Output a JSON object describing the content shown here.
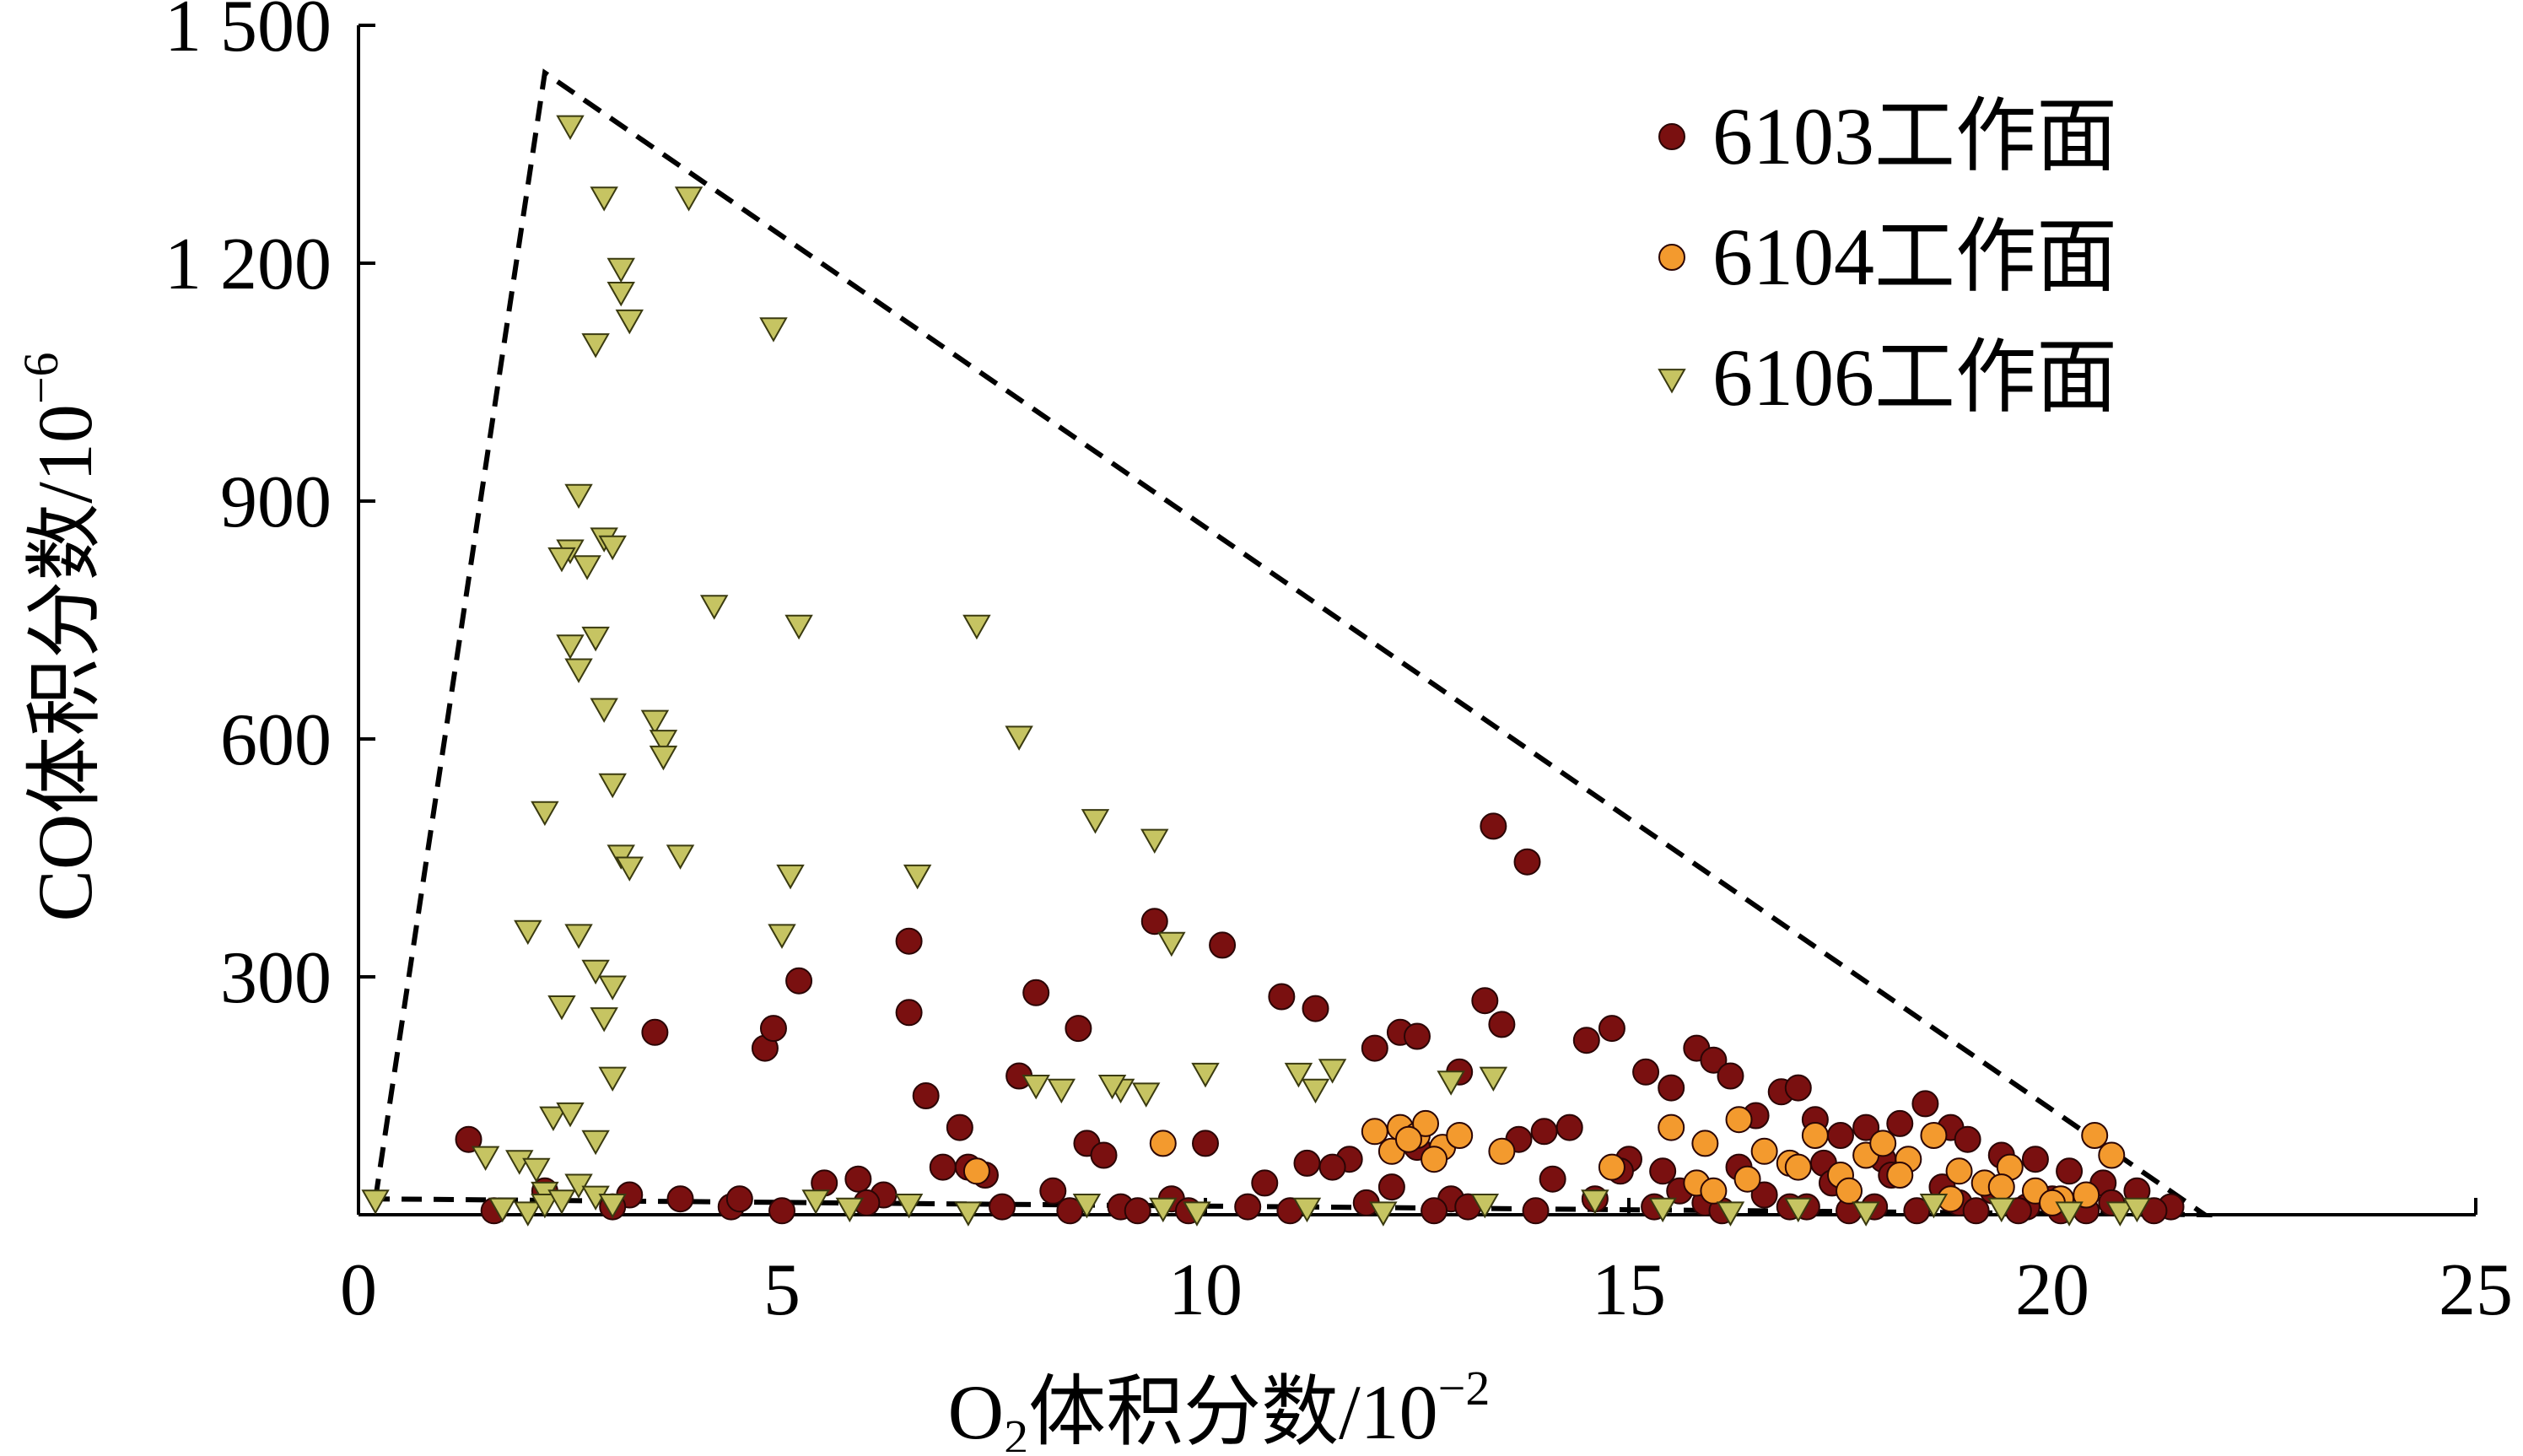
{
  "chart_data": {
    "type": "scatter",
    "xlabel_main": "O",
    "xlabel_sub": "2",
    "xlabel_rest": "体积分数/10",
    "xlabel_sup": "−2",
    "ylabel_main": "CO体积分数/10",
    "ylabel_sup": "−6",
    "xlim": [
      0,
      25
    ],
    "ylim": [
      0,
      1500
    ],
    "xticks": [
      0,
      5,
      10,
      15,
      20,
      25
    ],
    "xtick_labels": [
      "0",
      "5",
      "10",
      "15",
      "20",
      "25"
    ],
    "yticks": [
      300,
      600,
      900,
      1200,
      1500
    ],
    "ytick_labels": [
      "300",
      "600",
      "900",
      "1 200",
      "1 500"
    ],
    "grid": false,
    "legend_position": "top-right",
    "legend": [
      {
        "label": "6103工作面",
        "marker": "circle",
        "color": "#7a1010"
      },
      {
        "label": "6104工作面",
        "marker": "circle",
        "color": "#f39a2e"
      },
      {
        "label": "6106工作面",
        "marker": "triangle-down",
        "color": "#c6c462"
      }
    ],
    "boundary": {
      "style": "dashed",
      "x": [
        0.2,
        2.2,
        21.8,
        0.2
      ],
      "y": [
        20,
        1440,
        0,
        20
      ]
    },
    "series": [
      {
        "name": "6103工作面",
        "marker": "circle",
        "color": "#7a1010",
        "x": [
          1.3,
          3.5,
          5.2,
          4.8,
          4.9,
          6.5,
          6.5,
          6.7,
          7.1,
          7.8,
          8.0,
          8.5,
          8.6,
          9.4,
          10.2,
          10.9,
          11.3,
          12.0,
          12.3,
          12.5,
          13.0,
          13.3,
          13.4,
          13.5,
          13.8,
          14.0,
          14.5,
          14.8,
          15.2,
          15.5,
          15.8,
          16.0,
          16.2,
          16.5,
          16.8,
          17.0,
          17.2,
          17.5,
          17.8,
          18.2,
          18.5,
          18.8,
          19.0,
          6.9,
          7.2,
          8.8,
          10.0,
          11.2,
          11.7,
          12.5,
          13.7,
          14.3,
          15.0,
          15.4,
          16.3,
          17.3,
          18.0,
          19.4,
          19.8,
          20.2,
          20.6,
          21.0,
          21.4,
          1.6,
          2.2,
          3.2,
          3.8,
          4.4,
          5.5,
          5.9,
          6.2,
          7.4,
          8.2,
          9.0,
          9.6,
          10.7,
          11.5,
          12.2,
          12.9,
          14.1,
          14.9,
          15.6,
          16.6,
          17.4,
          18.1,
          18.7,
          19.3,
          20.0,
          20.7,
          21.2,
          4.5,
          6.0,
          7.6,
          9.2,
          10.5,
          11.9,
          13.1,
          14.6,
          15.9,
          16.9,
          17.9,
          18.9,
          19.7,
          20.4,
          3.0,
          5.0,
          8.4,
          9.8,
          11.0,
          12.7,
          13.9,
          15.3,
          16.1,
          17.1,
          17.6,
          18.4,
          19.1,
          19.6,
          20.1
        ],
        "y": [
          95,
          230,
          295,
          210,
          235,
          345,
          255,
          150,
          110,
          175,
          280,
          235,
          90,
          370,
          340,
          275,
          260,
          210,
          230,
          225,
          180,
          270,
          490,
          240,
          445,
          105,
          220,
          235,
          180,
          160,
          210,
          195,
          175,
          125,
          155,
          160,
          120,
          100,
          110,
          115,
          140,
          110,
          95,
          60,
          60,
          75,
          90,
          65,
          70,
          85,
          95,
          110,
          70,
          55,
          60,
          65,
          70,
          75,
          70,
          55,
          40,
          30,
          10,
          5,
          30,
          25,
          20,
          10,
          40,
          45,
          25,
          50,
          30,
          10,
          20,
          40,
          60,
          35,
          20,
          45,
          55,
          30,
          25,
          40,
          50,
          35,
          30,
          20,
          15,
          5,
          20,
          15,
          10,
          5,
          10,
          15,
          10,
          20,
          15,
          10,
          10,
          15,
          10,
          5,
          10,
          5,
          5,
          5,
          5,
          5,
          5,
          10,
          5,
          10,
          5,
          5,
          5,
          5,
          5
        ]
      },
      {
        "name": "6104工作面",
        "marker": "circle",
        "color": "#f39a2e",
        "x": [
          7.3,
          9.5,
          12.0,
          12.3,
          12.5,
          12.6,
          12.8,
          13.0,
          13.5,
          14.8,
          15.5,
          15.8,
          16.0,
          16.3,
          16.6,
          16.9,
          17.2,
          17.5,
          17.8,
          18.0,
          18.3,
          18.6,
          18.9,
          19.2,
          19.5,
          19.8,
          20.1,
          20.4,
          20.5,
          20.7,
          12.2,
          12.4,
          12.7,
          15.9,
          16.4,
          17.0,
          17.6,
          18.2,
          18.8,
          19.4,
          20.0
        ],
        "y": [
          55,
          90,
          105,
          110,
          100,
          115,
          85,
          100,
          80,
          60,
          110,
          40,
          30,
          120,
          80,
          65,
          100,
          50,
          75,
          90,
          70,
          100,
          55,
          40,
          60,
          30,
          20,
          25,
          100,
          75,
          80,
          95,
          70,
          90,
          45,
          60,
          30,
          50,
          20,
          35,
          15
        ]
      },
      {
        "name": "6106工作面",
        "marker": "triangle-down",
        "color": "#c6c462",
        "x": [
          0.2,
          2.5,
          2.9,
          3.1,
          3.1,
          3.2,
          2.8,
          3.9,
          4.9,
          2.6,
          2.9,
          3.0,
          2.5,
          2.4,
          2.7,
          2.8,
          4.2,
          5.2,
          7.3,
          2.5,
          2.6,
          2.9,
          3.5,
          3.6,
          3.6,
          7.8,
          2.2,
          3.0,
          3.1,
          3.2,
          3.8,
          5.1,
          6.6,
          8.7,
          9.4,
          2.0,
          2.6,
          2.8,
          3.0,
          5.0,
          9.6,
          2.4,
          2.9,
          3.0,
          9.0,
          11.1,
          11.5,
          12.9,
          13.4,
          8.0,
          8.3,
          8.9,
          9.3,
          10.0,
          11.3,
          2.3,
          2.5,
          2.8,
          1.5,
          1.9,
          2.1,
          2.2,
          2.6,
          1.7,
          2.0,
          2.2,
          2.4,
          2.8,
          3.0,
          5.4,
          5.8,
          6.5,
          7.2,
          8.6,
          9.5,
          9.9,
          11.2,
          12.1,
          13.3,
          14.6,
          15.4,
          16.2,
          17.0,
          17.8,
          18.6,
          19.4,
          20.2,
          20.8,
          21.0
        ],
        "y": [
          20,
          1375,
          1285,
          1195,
          1165,
          1130,
          1100,
          1285,
          1120,
          910,
          855,
          845,
          840,
          830,
          820,
          730,
          770,
          745,
          745,
          720,
          690,
          640,
          625,
          600,
          580,
          605,
          510,
          545,
          455,
          440,
          455,
          430,
          430,
          500,
          475,
          360,
          355,
          310,
          290,
          355,
          345,
          265,
          250,
          175,
          160,
          180,
          185,
          170,
          175,
          165,
          160,
          165,
          155,
          180,
          160,
          125,
          130,
          95,
          75,
          70,
          60,
          30,
          40,
          10,
          5,
          15,
          20,
          25,
          15,
          20,
          10,
          15,
          5,
          15,
          10,
          5,
          10,
          5,
          15,
          20,
          10,
          5,
          10,
          5,
          15,
          10,
          5,
          5,
          10
        ]
      }
    ]
  }
}
